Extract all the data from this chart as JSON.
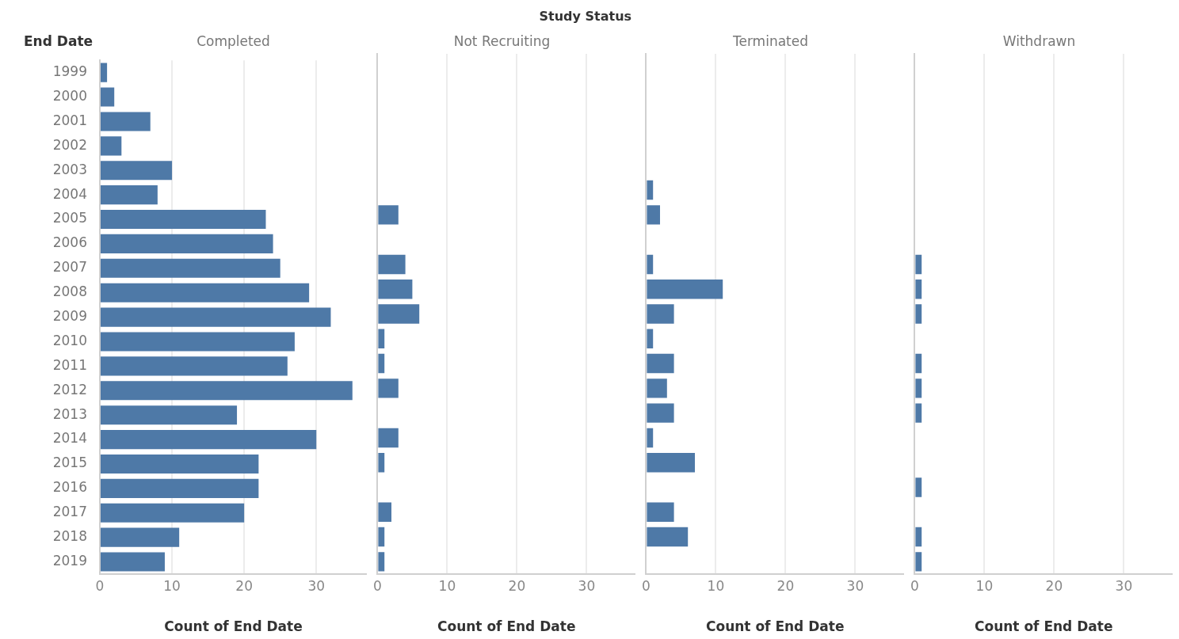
{
  "chart_data": [
    {
      "type": "bar",
      "orientation": "horizontal",
      "title": "Completed",
      "ylabel": "End Date",
      "xlabel": "Count of End Date",
      "annotations": [
        "Study Status"
      ],
      "categories": [
        "1999",
        "2000",
        "2001",
        "2002",
        "2003",
        "2004",
        "2005",
        "2006",
        "2007",
        "2008",
        "2009",
        "2010",
        "2011",
        "2012",
        "2013",
        "2014",
        "2015",
        "2016",
        "2017",
        "2018",
        "2019"
      ],
      "values": [
        1,
        2,
        7,
        3,
        10,
        8,
        23,
        24,
        25,
        29,
        32,
        27,
        26,
        35,
        19,
        30,
        22,
        22,
        20,
        11,
        9
      ],
      "color": "#4e79a7",
      "xlim": [
        0,
        37
      ],
      "xticks": [
        0,
        10,
        20,
        30
      ],
      "grid": "x"
    },
    {
      "type": "bar",
      "orientation": "horizontal",
      "title": "Not Recruiting",
      "xlabel": "Count of End Date",
      "categories": [
        "1999",
        "2000",
        "2001",
        "2002",
        "2003",
        "2004",
        "2005",
        "2006",
        "2007",
        "2008",
        "2009",
        "2010",
        "2011",
        "2012",
        "2013",
        "2014",
        "2015",
        "2016",
        "2017",
        "2018",
        "2019"
      ],
      "values": [
        null,
        null,
        null,
        null,
        null,
        null,
        3,
        null,
        4,
        5,
        6,
        1,
        1,
        3,
        null,
        3,
        1,
        null,
        2,
        1,
        1
      ],
      "color": "#4e79a7",
      "xlim": [
        0,
        37
      ],
      "xticks": [
        0,
        10,
        20,
        30
      ],
      "grid": "x",
      "tick_labels": "x"
    },
    {
      "type": "bar",
      "orientation": "horizontal",
      "title": "Terminated",
      "xlabel": "Count of End Date",
      "categories": [
        "1999",
        "2000",
        "2001",
        "2002",
        "2003",
        "2004",
        "2005",
        "2006",
        "2007",
        "2008",
        "2009",
        "2010",
        "2011",
        "2012",
        "2013",
        "2014",
        "2015",
        "2016",
        "2017",
        "2018",
        "2019"
      ],
      "values": [
        null,
        null,
        null,
        null,
        null,
        1,
        2,
        null,
        1,
        11,
        4,
        1,
        4,
        3,
        4,
        1,
        7,
        null,
        4,
        6,
        null
      ],
      "color": "#4e79a7",
      "xlim": [
        0,
        37
      ],
      "xticks": [
        0,
        10,
        20,
        30
      ],
      "grid": "x",
      "tick_labels": "x"
    },
    {
      "type": "bar",
      "orientation": "horizontal",
      "title": "Withdrawn",
      "xlabel": "Count of End Date",
      "categories": [
        "1999",
        "2000",
        "2001",
        "2002",
        "2003",
        "2004",
        "2005",
        "2006",
        "2007",
        "2008",
        "2009",
        "2010",
        "2011",
        "2012",
        "2013",
        "2014",
        "2015",
        "2016",
        "2017",
        "2018",
        "2019"
      ],
      "values": [
        null,
        null,
        null,
        null,
        null,
        null,
        null,
        null,
        1,
        1,
        1,
        null,
        1,
        1,
        1,
        null,
        null,
        1,
        null,
        1,
        1
      ],
      "color": "#4e79a7",
      "xlim": [
        0,
        37
      ],
      "xticks": [
        0,
        10,
        20,
        30
      ],
      "grid": "x",
      "tick_labels": "x"
    }
  ]
}
